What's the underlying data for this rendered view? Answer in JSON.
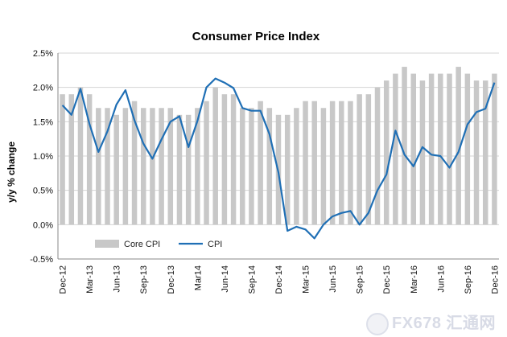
{
  "chart_data": {
    "type": "bar+line",
    "title": "Consumer  Price Index",
    "ylabel": "y/y % change",
    "xlabel": "",
    "ylim": [
      -0.5,
      2.5
    ],
    "yticks": [
      "-0.5%",
      "0.0%",
      "0.5%",
      "1.0%",
      "1.5%",
      "2.0%",
      "2.5%"
    ],
    "ytick_values": [
      -0.5,
      0.0,
      0.5,
      1.0,
      1.5,
      2.0,
      2.5
    ],
    "grid": true,
    "legend_position": "bottom-left",
    "months": [
      "Dec-12",
      "Jan-13",
      "Feb-13",
      "Mar-13",
      "Apr-13",
      "May-13",
      "Jun-13",
      "Jul-13",
      "Aug-13",
      "Sep-13",
      "Oct-13",
      "Nov-13",
      "Dec-13",
      "Jan-14",
      "Feb-14",
      "Mar-14",
      "Apr-14",
      "May-14",
      "Jun-14",
      "Jul-14",
      "Aug-14",
      "Sep-14",
      "Oct-14",
      "Nov-14",
      "Dec-14",
      "Jan-15",
      "Feb-15",
      "Mar-15",
      "Apr-15",
      "May-15",
      "Jun-15",
      "Jul-15",
      "Aug-15",
      "Sep-15",
      "Oct-15",
      "Nov-15",
      "Dec-15",
      "Jan-16",
      "Feb-16",
      "Mar-16",
      "Apr-16",
      "May-16",
      "Jun-16",
      "Jul-16",
      "Aug-16",
      "Sep-16",
      "Oct-16",
      "Nov-16",
      "Dec-16"
    ],
    "tick_labels": [
      "Dec-12",
      "Mar-13",
      "Jun-13",
      "Sep-13",
      "Dec-13",
      "Mar14",
      "Jun-14",
      "Sep-14",
      "Dec-14",
      "Mar-15",
      "Jun-15",
      "Sep-15",
      "Dec-15",
      "Mar-16",
      "Jun-16",
      "Sep-16",
      "Dec-16"
    ],
    "series": [
      {
        "name": "Core CPI",
        "kind": "bar",
        "color": "#c8c8c8",
        "values": [
          1.9,
          1.9,
          2.0,
          1.9,
          1.7,
          1.7,
          1.6,
          1.7,
          1.8,
          1.7,
          1.7,
          1.7,
          1.7,
          1.6,
          1.6,
          1.7,
          1.8,
          2.0,
          1.9,
          1.9,
          1.7,
          1.7,
          1.8,
          1.7,
          1.6,
          1.6,
          1.7,
          1.8,
          1.8,
          1.7,
          1.8,
          1.8,
          1.8,
          1.9,
          1.9,
          2.0,
          2.1,
          2.2,
          2.3,
          2.2,
          2.1,
          2.2,
          2.2,
          2.2,
          2.3,
          2.2,
          2.1,
          2.1,
          2.2
        ]
      },
      {
        "name": "CPI",
        "kind": "line",
        "color": "#1f6fb5",
        "values": [
          1.74,
          1.6,
          1.98,
          1.47,
          1.06,
          1.36,
          1.75,
          1.96,
          1.52,
          1.18,
          0.96,
          1.24,
          1.5,
          1.58,
          1.13,
          1.51,
          2.0,
          2.13,
          2.07,
          1.99,
          1.7,
          1.66,
          1.66,
          1.32,
          0.76,
          -0.09,
          -0.03,
          -0.07,
          -0.2,
          0.0,
          0.12,
          0.17,
          0.2,
          0.0,
          0.17,
          0.5,
          0.73,
          1.37,
          1.02,
          0.85,
          1.13,
          1.02,
          1.0,
          0.83,
          1.06,
          1.46,
          1.64,
          1.69,
          2.07
        ]
      }
    ]
  },
  "watermark": {
    "text": "FX678 汇通网"
  }
}
